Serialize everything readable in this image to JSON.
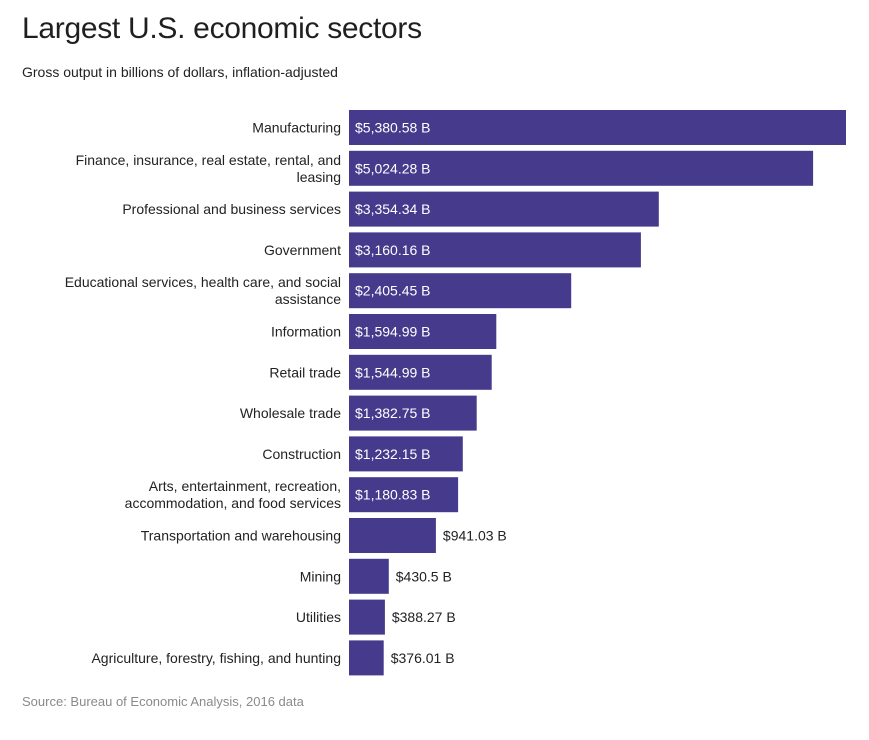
{
  "chart_data": {
    "type": "bar",
    "orientation": "horizontal",
    "title": "Largest U.S. economic sectors",
    "subtitle": "Gross output in billions of dollars, inflation-adjusted",
    "source": "Source: Bureau of Economic Analysis, 2016 data",
    "bar_color": "#453a8c",
    "inside_label_color": "#ffffff",
    "outside_label_color": "#222222",
    "grid": false,
    "categories": [
      [
        "Manufacturing"
      ],
      [
        "Finance, insurance, real estate, rental, and",
        "leasing"
      ],
      [
        "Professional and business services"
      ],
      [
        "Government"
      ],
      [
        "Educational services, health care, and social",
        "assistance"
      ],
      [
        "Information"
      ],
      [
        "Retail trade"
      ],
      [
        "Wholesale trade"
      ],
      [
        "Construction"
      ],
      [
        "Arts, entertainment, recreation,",
        "accommodation, and food services"
      ],
      [
        "Transportation and warehousing"
      ],
      [
        "Mining"
      ],
      [
        "Utilities"
      ],
      [
        "Agriculture, forestry, fishing, and hunting"
      ]
    ],
    "values": [
      5380.58,
      5024.28,
      3354.34,
      3160.16,
      2405.45,
      1594.99,
      1544.99,
      1382.75,
      1232.15,
      1180.83,
      941.03,
      430.5,
      388.27,
      376.01
    ],
    "value_labels": [
      "$5,380.58 B",
      "$5,024.28 B",
      "$3,354.34 B",
      "$3,160.16 B",
      "$2,405.45 B",
      "$1,594.99 B",
      "$1,544.99 B",
      "$1,382.75 B",
      "$1,232.15 B",
      "$1,180.83 B",
      "$941.03 B",
      "$430.5 B",
      "$388.27 B",
      "$376.01 B"
    ]
  }
}
